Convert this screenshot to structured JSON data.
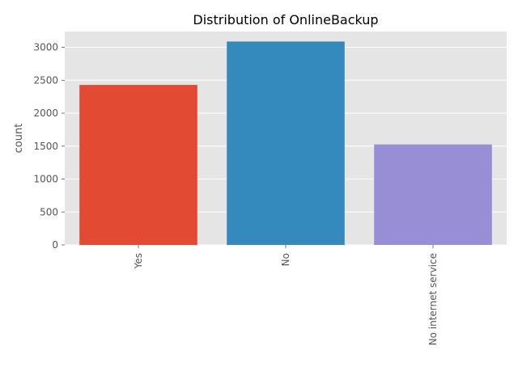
{
  "chart_data": {
    "type": "bar",
    "title": "Distribution of OnlineBackup",
    "xlabel": "",
    "ylabel": "count",
    "categories": [
      "Yes",
      "No",
      "No internet service"
    ],
    "values": [
      2429,
      3088,
      1526
    ],
    "colors": [
      "#E24A33",
      "#348ABD",
      "#988ED5"
    ],
    "ylim": [
      0,
      3240
    ],
    "yticks": [
      0,
      500,
      1000,
      1500,
      2000,
      2500,
      3000
    ],
    "grid": true,
    "background": "#E5E5E5"
  }
}
